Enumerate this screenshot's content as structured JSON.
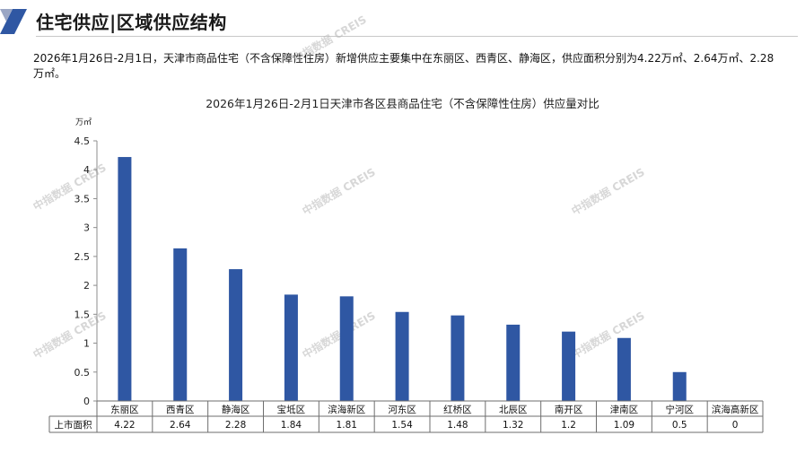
{
  "header": {
    "title": "住宅供应|区域供应结构"
  },
  "description": "2026年1月26日-2月1日，天津市商品住宅（不含保障性住房）新增供应主要集中在东丽区、西青区、静海区，供应面积分别为4.22万㎡、2.64万㎡、2.28万㎡。",
  "watermark": "中指数据 CREIS",
  "chart_data": {
    "type": "bar",
    "title": "2026年1月26日-2月1日天津市各区县商品住宅（不含保障性住房）供应量对比",
    "y_unit": "万㎡",
    "ylim": [
      0,
      4.5
    ],
    "yticks": [
      "0",
      "0.5",
      "1",
      "1.5",
      "2",
      "2.5",
      "3",
      "3.5",
      "4",
      "4.5"
    ],
    "categories": [
      "东丽区",
      "西青区",
      "静海区",
      "宝坻区",
      "滨海新区",
      "河东区",
      "红桥区",
      "北辰区",
      "南开区",
      "津南区",
      "宁河区",
      "滨海高新区"
    ],
    "series": [
      {
        "name": "上市面积",
        "values": [
          4.22,
          2.64,
          2.28,
          1.84,
          1.81,
          1.54,
          1.48,
          1.32,
          1.2,
          1.09,
          0.5,
          0
        ],
        "labels": [
          "4.22",
          "2.64",
          "2.28",
          "1.84",
          "1.81",
          "1.54",
          "1.48",
          "1.32",
          "1.2",
          "1.09",
          "0.5",
          "0"
        ]
      }
    ],
    "bar_color": "#2f57a3",
    "grid": false,
    "legend": "none",
    "data_table": true
  }
}
